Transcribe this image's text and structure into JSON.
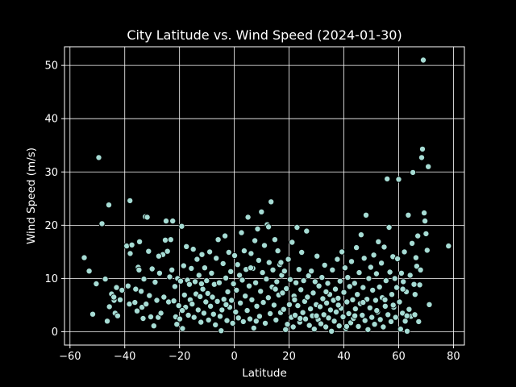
{
  "chart_data": {
    "type": "scatter",
    "title": "City Latitude vs. Wind Speed (2024-01-30)",
    "xlabel": "Latitude",
    "ylabel": "Wind Speed (m/s)",
    "xlim": [
      -62,
      84
    ],
    "ylim": [
      -2.5,
      53.5
    ],
    "xticks": [
      -60,
      -40,
      -20,
      0,
      20,
      40,
      60,
      80
    ],
    "yticks": [
      0,
      10,
      20,
      30,
      40,
      50
    ],
    "grid": true,
    "marker_color": "#a6dcd4",
    "marker_edge": "#000000",
    "background": "#000000",
    "points": [
      [
        -54.8,
        13.9
      ],
      [
        -53,
        11.4
      ],
      [
        -51.7,
        3.3
      ],
      [
        -50.4,
        9.0
      ],
      [
        -49.5,
        32.7
      ],
      [
        -48.3,
        20.3
      ],
      [
        -47.1,
        9.9
      ],
      [
        -46.4,
        2.0
      ],
      [
        -45.8,
        23.8
      ],
      [
        -45.6,
        4.7
      ],
      [
        -44.8,
        7.1
      ],
      [
        -43.9,
        5.9
      ],
      [
        -43.5,
        3.5
      ],
      [
        -43.0,
        8.3
      ],
      [
        -42.6,
        3.0
      ],
      [
        -41.7,
        6.0
      ],
      [
        -41,
        7.8
      ],
      [
        -39.3,
        16.1
      ],
      [
        -38.8,
        8.6
      ],
      [
        -38.3,
        5.2
      ],
      [
        -38.1,
        24.6
      ],
      [
        -38.0,
        14.7
      ],
      [
        -37.4,
        16.3
      ],
      [
        -36.3,
        5.5
      ],
      [
        -35.5,
        3.9
      ],
      [
        -35.1,
        12.1
      ],
      [
        -34.8,
        11.6
      ],
      [
        -34.6,
        16.9
      ],
      [
        -34.0,
        7.6
      ],
      [
        -33.7,
        4.6
      ],
      [
        -33.3,
        2.5
      ],
      [
        -33.0,
        9.9
      ],
      [
        -32.5,
        21.6
      ],
      [
        -32.2,
        5.2
      ],
      [
        -31.8,
        21.5
      ],
      [
        -31.3,
        15.1
      ],
      [
        -31.0,
        6.8
      ],
      [
        -30.5,
        2.8
      ],
      [
        -30.0,
        11.8
      ],
      [
        -29.4,
        1.1
      ],
      [
        -28.9,
        9.3
      ],
      [
        -28.3,
        5.9
      ],
      [
        -27.8,
        2.7
      ],
      [
        -27.3,
        11.0
      ],
      [
        -26.8,
        3.5
      ],
      [
        -26.1,
        14.5
      ],
      [
        -25.7,
        6.5
      ],
      [
        -25.2,
        17.2
      ],
      [
        -24.9,
        20.8
      ],
      [
        -24.4,
        15.1
      ],
      [
        -24.0,
        5.6
      ],
      [
        -23.6,
        10.3
      ],
      [
        -23.2,
        17.3
      ],
      [
        -22.8,
        11.6
      ],
      [
        -22.5,
        20.8
      ],
      [
        -22.1,
        5.8
      ],
      [
        -21.7,
        8.5
      ],
      [
        -21.4,
        2.8
      ],
      [
        -21.0,
        1.4
      ],
      [
        -20.7,
        10.0
      ],
      [
        -20.3,
        4.9
      ],
      [
        -19.9,
        2.4
      ],
      [
        -19.6,
        9.5
      ],
      [
        -19.2,
        19.8
      ],
      [
        -18.9,
        0.6
      ],
      [
        -18.5,
        12.4
      ],
      [
        -18.2,
        6.9
      ],
      [
        -17.8,
        4.6
      ],
      [
        -17.5,
        16.0
      ],
      [
        -17.1,
        9.7
      ],
      [
        -16.8,
        3.1
      ],
      [
        -16.4,
        8.9
      ],
      [
        -16.1,
        6.0
      ],
      [
        -15.7,
        11.9
      ],
      [
        -15.4,
        5.2
      ],
      [
        -15.0,
        15.5
      ],
      [
        -14.7,
        2.7
      ],
      [
        -14.3,
        9.4
      ],
      [
        -14.0,
        7.1
      ],
      [
        -13.6,
        13.6
      ],
      [
        -13.2,
        4.1
      ],
      [
        -12.9,
        10.6
      ],
      [
        -12.5,
        6.6
      ],
      [
        -12.2,
        1.8
      ],
      [
        -11.8,
        14.5
      ],
      [
        -11.5,
        8.0
      ],
      [
        -11.1,
        3.5
      ],
      [
        -10.8,
        12.0
      ],
      [
        -10.4,
        5.6
      ],
      [
        -10.1,
        9.6
      ],
      [
        -9.7,
        7.2
      ],
      [
        -9.4,
        2.2
      ],
      [
        -9.0,
        15.0
      ],
      [
        -8.7,
        4.8
      ],
      [
        -8.3,
        11.0
      ],
      [
        -8.0,
        6.5
      ],
      [
        -7.6,
        3.3
      ],
      [
        -7.3,
        8.9
      ],
      [
        -6.9,
        1.3
      ],
      [
        -6.6,
        13.8
      ],
      [
        -6.2,
        5.7
      ],
      [
        -5.9,
        17.3
      ],
      [
        -5.5,
        9.2
      ],
      [
        -5.2,
        2.9
      ],
      [
        -4.8,
        0.2
      ],
      [
        -4.5,
        4.1
      ],
      [
        -4.1,
        12.8
      ],
      [
        -3.8,
        6.1
      ],
      [
        -3.4,
        18.0
      ],
      [
        -3.1,
        10.1
      ],
      [
        -2.7,
        2.1
      ],
      [
        -2.4,
        7.5
      ],
      [
        -2.0,
        14.9
      ],
      [
        -1.7,
        4.6
      ],
      [
        -1.3,
        11.3
      ],
      [
        -1.0,
        5.9
      ],
      [
        -0.6,
        1.6
      ],
      [
        -0.3,
        9.0
      ],
      [
        0.1,
        14.3
      ],
      [
        0.5,
        3.7
      ],
      [
        0.8,
        7.8
      ],
      [
        1.2,
        12.6
      ],
      [
        1.5,
        2.6
      ],
      [
        1.9,
        10.6
      ],
      [
        2.2,
        5.4
      ],
      [
        2.6,
        18.6
      ],
      [
        2.9,
        9.7
      ],
      [
        3.3,
        1.9
      ],
      [
        3.6,
        15.2
      ],
      [
        4.0,
        6.7
      ],
      [
        4.3,
        11.7
      ],
      [
        4.7,
        4.0
      ],
      [
        5.0,
        21.5
      ],
      [
        5.4,
        8.6
      ],
      [
        5.7,
        2.4
      ],
      [
        6.1,
        14.7
      ],
      [
        6.4,
        6.0
      ],
      [
        6.8,
        11.9
      ],
      [
        7.1,
        0.7
      ],
      [
        7.5,
        17.1
      ],
      [
        7.8,
        9.2
      ],
      [
        8.2,
        4.8
      ],
      [
        8.5,
        19.3
      ],
      [
        8.9,
        13.4
      ],
      [
        9.2,
        2.9
      ],
      [
        9.6,
        7.6
      ],
      [
        9.9,
        22.5
      ],
      [
        10.3,
        11.1
      ],
      [
        10.6,
        5.5
      ],
      [
        11.0,
        16.2
      ],
      [
        11.3,
        1.6
      ],
      [
        11.7,
        9.9
      ],
      [
        12.0,
        20.1
      ],
      [
        12.4,
        6.4
      ],
      [
        12.7,
        13.0
      ],
      [
        13.1,
        3.4
      ],
      [
        13.4,
        24.4
      ],
      [
        13.8,
        8.4
      ],
      [
        14.1,
        11.6
      ],
      [
        14.5,
        5.0
      ],
      [
        14.8,
        17.3
      ],
      [
        15.2,
        2.2
      ],
      [
        15.5,
        9.4
      ],
      [
        15.9,
        15.2
      ],
      [
        16.2,
        6.9
      ],
      [
        16.6,
        12.6
      ],
      [
        16.9,
        3.6
      ],
      [
        17.3,
        10.6
      ],
      [
        17.6,
        7.3
      ],
      [
        18.0,
        4.2
      ],
      [
        18.3,
        11.4
      ],
      [
        18.7,
        0.4
      ],
      [
        19.0,
        8.1
      ],
      [
        19.4,
        1.4
      ],
      [
        19.7,
        13.6
      ],
      [
        20.1,
        5.1
      ],
      [
        20.4,
        9.8
      ],
      [
        20.8,
        2.7
      ],
      [
        21.1,
        16.8
      ],
      [
        21.5,
        0.9
      ],
      [
        21.8,
        6.7
      ],
      [
        22.2,
        3.1
      ],
      [
        22.5,
        9.2
      ],
      [
        22.9,
        19.6
      ],
      [
        23.2,
        4.9
      ],
      [
        23.6,
        11.7
      ],
      [
        23.9,
        1.8
      ],
      [
        24.3,
        7.9
      ],
      [
        24.6,
        14.9
      ],
      [
        25.0,
        3.6
      ],
      [
        25.3,
        9.6
      ],
      [
        25.7,
        5.7
      ],
      [
        26.0,
        2.4
      ],
      [
        26.4,
        18.9
      ],
      [
        26.7,
        6.5
      ],
      [
        27.1,
        10.5
      ],
      [
        27.4,
        1.2
      ],
      [
        27.8,
        4.3
      ],
      [
        28.1,
        11.4
      ],
      [
        28.5,
        3.0
      ],
      [
        28.8,
        7.3
      ],
      [
        29.2,
        0.5
      ],
      [
        29.5,
        9.4
      ],
      [
        29.9,
        5.1
      ],
      [
        30.2,
        14.2
      ],
      [
        30.6,
        2.3
      ],
      [
        30.9,
        8.6
      ],
      [
        31.3,
        4.7
      ],
      [
        31.6,
        1.5
      ],
      [
        32.0,
        10.2
      ],
      [
        32.3,
        6.2
      ],
      [
        32.7,
        3.2
      ],
      [
        33.0,
        12.5
      ],
      [
        33.4,
        0.9
      ],
      [
        33.7,
        5.4
      ],
      [
        34.1,
        9.1
      ],
      [
        34.4,
        2.6
      ],
      [
        34.8,
        7.0
      ],
      [
        35.1,
        4.1
      ],
      [
        35.5,
        0.1
      ],
      [
        35.8,
        11.6
      ],
      [
        36.2,
        5.9
      ],
      [
        36.5,
        2.0
      ],
      [
        36.9,
        8.0
      ],
      [
        37.2,
        3.7
      ],
      [
        37.6,
        13.6
      ],
      [
        37.9,
        6.3
      ],
      [
        38.3,
        1.1
      ],
      [
        38.6,
        9.5
      ],
      [
        39.0,
        4.4
      ],
      [
        39.3,
        15.0
      ],
      [
        39.7,
        2.8
      ],
      [
        40.0,
        7.4
      ],
      [
        40.4,
        12.0
      ],
      [
        40.7,
        0.6
      ],
      [
        41.1,
        5.6
      ],
      [
        41.4,
        10.2
      ],
      [
        41.8,
        3.4
      ],
      [
        42.1,
        8.5
      ],
      [
        42.5,
        1.7
      ],
      [
        42.8,
        13.2
      ],
      [
        43.2,
        6.0
      ],
      [
        43.5,
        2.5
      ],
      [
        43.9,
        9.1
      ],
      [
        44.2,
        4.3
      ],
      [
        44.6,
        15.8
      ],
      [
        44.9,
        7.0
      ],
      [
        45.3,
        1.0
      ],
      [
        45.6,
        11.1
      ],
      [
        46.0,
        5.3
      ],
      [
        46.3,
        18.2
      ],
      [
        46.7,
        3.1
      ],
      [
        47.0,
        8.3
      ],
      [
        47.4,
        13.8
      ],
      [
        47.7,
        2.1
      ],
      [
        48.1,
        21.9
      ],
      [
        48.4,
        6.1
      ],
      [
        48.8,
        0.4
      ],
      [
        49.1,
        10.0
      ],
      [
        49.5,
        4.5
      ],
      [
        49.8,
        12.1
      ],
      [
        50.2,
        2.7
      ],
      [
        50.5,
        7.8
      ],
      [
        50.9,
        14.4
      ],
      [
        51.2,
        1.4
      ],
      [
        51.6,
        5.9
      ],
      [
        51.9,
        10.9
      ],
      [
        52.3,
        3.7
      ],
      [
        52.6,
        16.9
      ],
      [
        53.0,
        8.4
      ],
      [
        53.3,
        2.3
      ],
      [
        53.7,
        12.9
      ],
      [
        54.0,
        6.4
      ],
      [
        54.4,
        0.9
      ],
      [
        54.7,
        15.9
      ],
      [
        55.1,
        4.8
      ],
      [
        55.4,
        9.6
      ],
      [
        55.8,
        28.7
      ],
      [
        56.1,
        3.2
      ],
      [
        56.5,
        19.6
      ],
      [
        56.8,
        11.2
      ],
      [
        57.2,
        1.9
      ],
      [
        57.5,
        7.0
      ],
      [
        57.9,
        14.1
      ],
      [
        58.2,
        4.6
      ],
      [
        58.6,
        10.0
      ],
      [
        58.9,
        2.7
      ],
      [
        59.3,
        8.3
      ],
      [
        59.6,
        13.7
      ],
      [
        60.0,
        28.6
      ],
      [
        60.3,
        5.6
      ],
      [
        60.7,
        0.5
      ],
      [
        61.0,
        11.0
      ],
      [
        61.4,
        3.5
      ],
      [
        61.7,
        9.4
      ],
      [
        62.1,
        15.0
      ],
      [
        62.4,
        2.0
      ],
      [
        62.8,
        7.5
      ],
      [
        63.1,
        0.1
      ],
      [
        63.5,
        21.9
      ],
      [
        63.8,
        4.2
      ],
      [
        64.2,
        10.6
      ],
      [
        64.5,
        2.9
      ],
      [
        64.9,
        16.6
      ],
      [
        65.2,
        29.9
      ],
      [
        65.6,
        8.9
      ],
      [
        65.9,
        3.2
      ],
      [
        66.3,
        13.9
      ],
      [
        66.6,
        12.3
      ],
      [
        67.0,
        18.0
      ],
      [
        67.3,
        1.9
      ],
      [
        67.7,
        8.8
      ],
      [
        68.0,
        11.6
      ],
      [
        68.4,
        32.7
      ],
      [
        68.7,
        34.3
      ],
      [
        69.0,
        51.0
      ],
      [
        69.3,
        22.3
      ],
      [
        69.6,
        20.8
      ],
      [
        70.0,
        18.4
      ],
      [
        70.4,
        15.3
      ],
      [
        70.8,
        31.0
      ],
      [
        71.2,
        5.1
      ],
      [
        78.2,
        16.1
      ],
      [
        -27.6,
        14.2
      ],
      [
        -12.0,
        9.0
      ],
      [
        -3.0,
        5.1
      ],
      [
        6.0,
        12.0
      ],
      [
        12.5,
        19.7
      ],
      [
        17.0,
        13.0
      ],
      [
        22.0,
        6.0
      ],
      [
        30.0,
        3.0
      ],
      [
        38.0,
        5.0
      ],
      [
        44.0,
        3.0
      ],
      [
        52.0,
        4.0
      ],
      [
        58.0,
        5.0
      ],
      [
        63.0,
        3.0
      ],
      [
        -44.0,
        6.5
      ],
      [
        -36.0,
        8.0
      ],
      [
        -19.0,
        4.0
      ],
      [
        8.0,
        2.0
      ],
      [
        15.0,
        8.0
      ],
      [
        24.0,
        2.5
      ],
      [
        33.5,
        7.5
      ],
      [
        41.0,
        1.0
      ],
      [
        47.0,
        5.5
      ],
      [
        55.0,
        6.0
      ],
      [
        61.5,
        8.0
      ],
      [
        66.0,
        7.0
      ]
    ]
  }
}
